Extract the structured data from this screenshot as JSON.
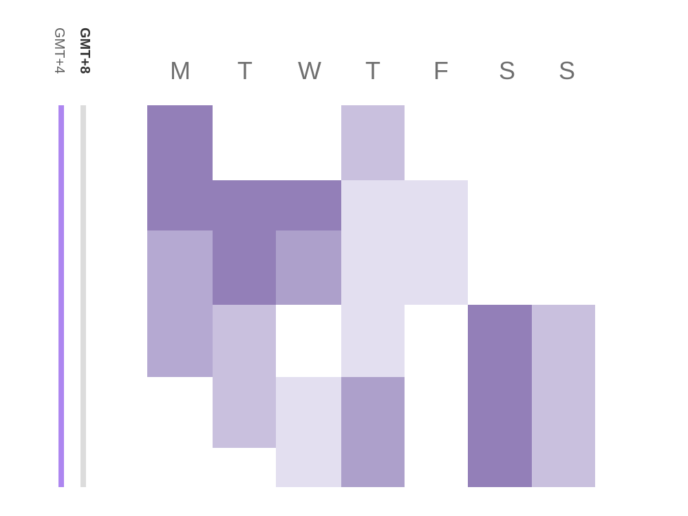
{
  "chart_data": {
    "type": "heatmap",
    "title": "",
    "timezones": [
      {
        "label": "GMT+4",
        "color": "#ad86f0",
        "bold": false
      },
      {
        "label": "GMT+8",
        "color": "#dcdcdc",
        "bold": true
      }
    ],
    "days": [
      "M",
      "T",
      "W",
      "T",
      "F",
      "S",
      "S"
    ],
    "rows": 6,
    "colors": {
      "level1": "#e3dff0",
      "level2": "#c9c0de",
      "level3": "#ada0cb",
      "level4": "#937fb8",
      "level3_alt": "#b5a9d2"
    },
    "blocks": [
      {
        "day": 0,
        "start": 0,
        "end": 2,
        "level": 4
      },
      {
        "day": 0,
        "start": 2,
        "end": 4,
        "level": "3_alt"
      },
      {
        "day": 1,
        "start": 1,
        "end": 3,
        "level": 4
      },
      {
        "day": 1,
        "start": 3,
        "end": 5,
        "level": 2
      },
      {
        "day": 2,
        "start": 1,
        "end": 2,
        "level": 4
      },
      {
        "day": 2,
        "start": 2,
        "end": 3,
        "level": 3
      },
      {
        "day": 2,
        "start": 4,
        "end": 6,
        "level": 1
      },
      {
        "day": 3,
        "start": 0,
        "end": 1,
        "level": 2
      },
      {
        "day": 3,
        "start": 1,
        "end": 4,
        "level": 1
      },
      {
        "day": 3,
        "start": 4,
        "end": 6,
        "level": 3
      },
      {
        "day": 4,
        "start": 1,
        "end": 3,
        "level": 1
      },
      {
        "day": 5,
        "start": 3,
        "end": 6,
        "level": 4
      },
      {
        "day": 6,
        "start": 3,
        "end": 6,
        "level": 2
      }
    ]
  }
}
